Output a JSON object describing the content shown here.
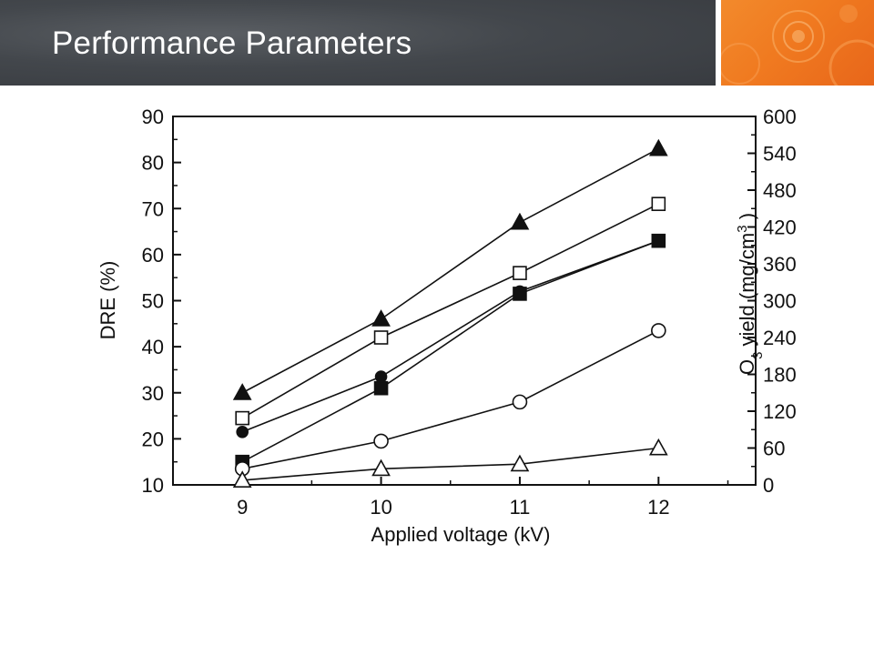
{
  "slide": {
    "title": "Performance Parameters"
  },
  "colors": {
    "header_dark": "#43474c",
    "accent_orange": "#f07a20",
    "title_text": "#ffffff",
    "chart_ink": "#111111"
  },
  "chart_data": {
    "type": "line",
    "title": "",
    "xlabel": "Applied voltage (kV)",
    "ylabel": "DRE (%)",
    "y2label_main": "O",
    "y2label_sub": "3",
    "y2label_rest": " yield (mg/cm",
    "y2label_sup": "3",
    "y2label_close": " )",
    "x": [
      9,
      10,
      11,
      12
    ],
    "xticks": [
      "9",
      "10",
      "11",
      "12"
    ],
    "xlim": [
      8.5,
      12.7
    ],
    "ylim": [
      10,
      90
    ],
    "yticks": [
      "10",
      "20",
      "30",
      "40",
      "50",
      "60",
      "70",
      "80",
      "90"
    ],
    "y2lim": [
      0,
      600
    ],
    "y2ticks": [
      "0",
      "60",
      "120",
      "180",
      "240",
      "300",
      "360",
      "420",
      "480",
      "540",
      "600"
    ],
    "grid": false,
    "series": [
      {
        "marker": "triangle-filled",
        "values": [
          30,
          46,
          67,
          83
        ]
      },
      {
        "marker": "square-open",
        "values": [
          24.5,
          42,
          56,
          71
        ]
      },
      {
        "marker": "circle-filled",
        "values": [
          21.5,
          33.5,
          52,
          63
        ]
      },
      {
        "marker": "square-filled",
        "values": [
          15,
          31,
          51.5,
          63
        ]
      },
      {
        "marker": "circle-open",
        "values": [
          13.5,
          19.5,
          28,
          43.5
        ]
      },
      {
        "marker": "triangle-open",
        "values": [
          11,
          13.5,
          14.5,
          18
        ]
      }
    ]
  }
}
